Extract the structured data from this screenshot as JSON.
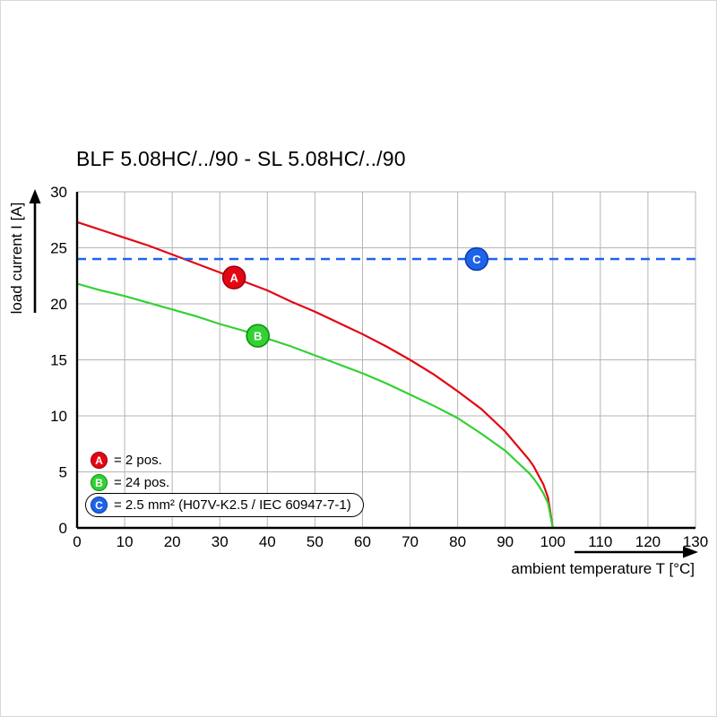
{
  "chart_data": {
    "type": "line",
    "title": "BLF 5.08HC/../90 - SL 5.08HC/../90",
    "xlabel": "ambient temperature T [°C]",
    "ylabel": "load current I [A]",
    "xlim": [
      0,
      130
    ],
    "ylim": [
      0,
      30
    ],
    "x_ticks": [
      0,
      10,
      20,
      30,
      40,
      50,
      60,
      70,
      80,
      90,
      100,
      110,
      120,
      130
    ],
    "y_ticks": [
      0,
      5,
      10,
      15,
      20,
      25,
      30
    ],
    "grid": true,
    "grid_color": "#b5b5b5",
    "legend_position": "lower-left",
    "series": [
      {
        "name": "A",
        "label": "= 2 pos.",
        "color": "#e30613",
        "ring": "#9b0010",
        "style": "solid",
        "x": [
          0,
          5,
          10,
          15,
          20,
          25,
          30,
          35,
          40,
          45,
          50,
          55,
          60,
          65,
          70,
          75,
          80,
          85,
          90,
          95,
          96,
          97,
          98,
          99,
          100
        ],
        "y": [
          27.3,
          26.6,
          25.9,
          25.2,
          24.4,
          23.6,
          22.8,
          22.0,
          21.2,
          20.2,
          19.3,
          18.3,
          17.3,
          16.2,
          15.0,
          13.7,
          12.2,
          10.6,
          8.6,
          6.1,
          5.5,
          4.7,
          3.9,
          2.7,
          0
        ],
        "marker": {
          "letter": "A",
          "x": 33,
          "y": 22.35
        }
      },
      {
        "name": "B",
        "label": "= 24 pos.",
        "color": "#33d133",
        "ring": "#0f8f0f",
        "style": "solid",
        "x": [
          0,
          5,
          10,
          15,
          20,
          25,
          30,
          35,
          40,
          45,
          50,
          55,
          60,
          65,
          70,
          75,
          80,
          85,
          90,
          95,
          96,
          97,
          98,
          99,
          100
        ],
        "y": [
          21.8,
          21.2,
          20.7,
          20.1,
          19.5,
          18.9,
          18.2,
          17.6,
          16.9,
          16.2,
          15.4,
          14.6,
          13.8,
          12.9,
          11.9,
          10.9,
          9.8,
          8.4,
          6.9,
          4.9,
          4.4,
          3.8,
          3.1,
          2.2,
          0
        ],
        "marker": {
          "letter": "B",
          "x": 38,
          "y": 17.15
        }
      },
      {
        "name": "C",
        "label": "= 2.5 mm² (H07V-K2.5 / IEC 60947-7-1)",
        "color": "#1e63e9",
        "ring": "#0c3fa6",
        "style": "dashed",
        "x": [
          0,
          130
        ],
        "y": [
          24,
          24
        ],
        "marker": {
          "letter": "C",
          "x": 84,
          "y": 24
        }
      }
    ]
  }
}
